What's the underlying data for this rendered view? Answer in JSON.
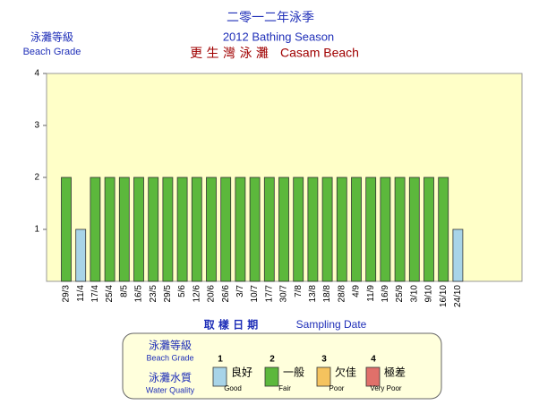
{
  "chart_data": {
    "type": "bar",
    "title": "二零一二年泳季",
    "subtitle": "2012 Bathing Season",
    "location_zh": "更 生 灣 泳 灘",
    "location_en": "Casam Beach",
    "y_label_zh": "泳灘等級",
    "y_label_en": "Beach Grade",
    "x_label_zh": "取 樣 日 期",
    "x_label_en": "Sampling Date",
    "categories": [
      "29/3",
      "11/4",
      "17/4",
      "25/4",
      "8/5",
      "16/5",
      "23/5",
      "29/5",
      "5/6",
      "12/6",
      "20/6",
      "26/6",
      "3/7",
      "10/7",
      "17/7",
      "30/7",
      "7/8",
      "13/8",
      "18/8",
      "28/8",
      "4/9",
      "11/9",
      "16/9",
      "25/9",
      "3/10",
      "9/10",
      "16/10",
      "24/10"
    ],
    "values": [
      2,
      1,
      2,
      2,
      2,
      2,
      2,
      2,
      2,
      2,
      2,
      2,
      2,
      2,
      2,
      2,
      2,
      2,
      2,
      2,
      2,
      2,
      2,
      2,
      2,
      2,
      2,
      1
    ],
    "ylim": [
      0,
      4
    ],
    "yticks": [
      1,
      2,
      3,
      4
    ],
    "legend": {
      "grade_label_zh": "泳灘等級",
      "grade_label_en": "Beach Grade",
      "quality_label_zh": "泳灘水質",
      "quality_label_en": "Water Quality",
      "items": [
        {
          "grade": 1,
          "label_zh": "良好",
          "label_en": "Good",
          "color": "#a8d4e8"
        },
        {
          "grade": 2,
          "label_zh": "一般",
          "label_en": "Fair",
          "color": "#5cb83c"
        },
        {
          "grade": 3,
          "label_zh": "欠佳",
          "label_en": "Poor",
          "color": "#f5c35e"
        },
        {
          "grade": 4,
          "label_zh": "極差",
          "label_en": "Very Poor",
          "color": "#e0706a"
        }
      ]
    }
  }
}
